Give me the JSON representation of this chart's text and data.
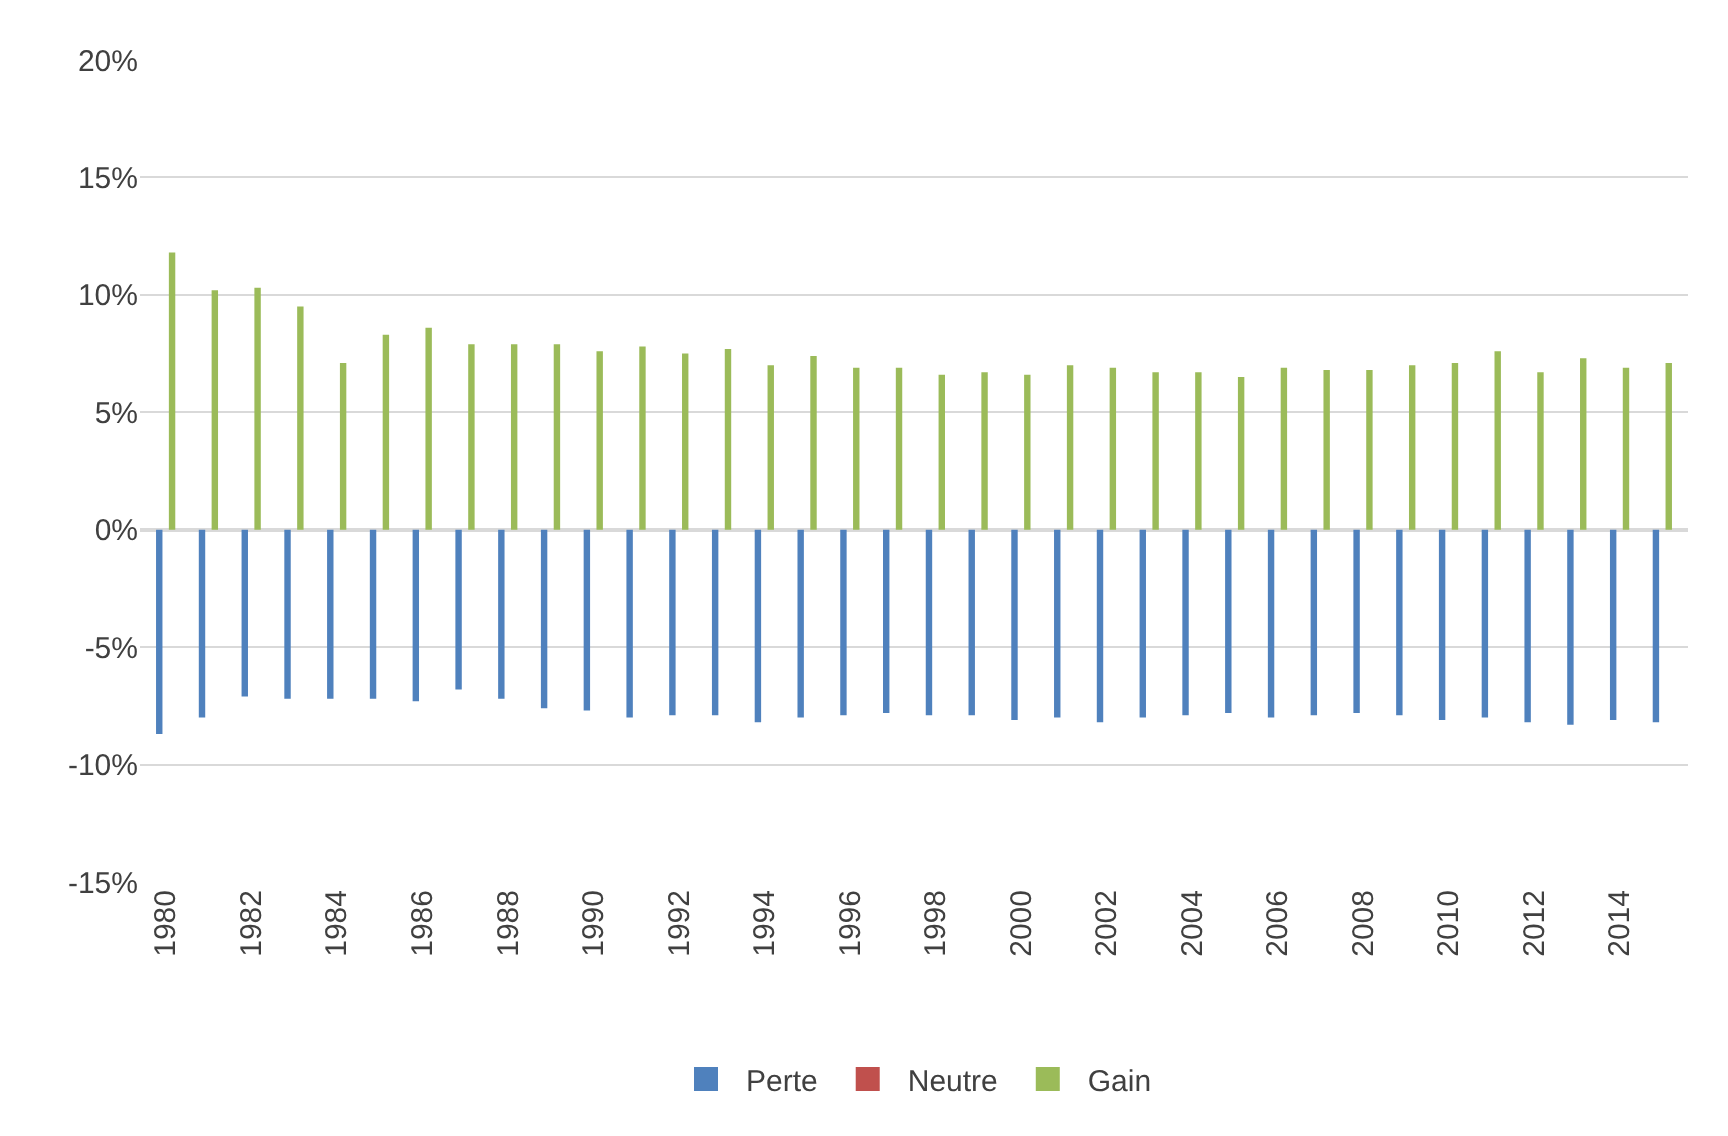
{
  "chart_data": {
    "type": "bar",
    "categories": [
      "1980",
      null,
      "1982",
      null,
      "1984",
      null,
      "1986",
      null,
      "1988",
      null,
      "1990",
      null,
      "1992",
      null,
      "1994",
      null,
      "1996",
      null,
      "1998",
      null,
      "2000",
      null,
      "2002",
      null,
      "2004",
      null,
      "2006",
      null,
      "2008",
      null,
      "2010",
      null,
      "2012",
      null,
      "2014",
      null
    ],
    "series": [
      {
        "name": "Perte",
        "color": "#4f81bd",
        "values": [
          -8.7,
          -8.0,
          -7.1,
          -7.2,
          -7.2,
          -7.2,
          -7.3,
          -6.8,
          -7.2,
          -7.6,
          -7.7,
          -8.0,
          -7.9,
          -7.9,
          -8.2,
          -8.0,
          -7.9,
          -7.8,
          -7.9,
          -7.9,
          -8.1,
          -8.0,
          -8.2,
          -8.0,
          -7.9,
          -7.8,
          -8.0,
          -7.9,
          -7.8,
          -7.9,
          -8.1,
          -8.0,
          -8.2,
          -8.3,
          -8.1,
          -8.2
        ]
      },
      {
        "name": "Neutre",
        "color": "#c0504d",
        "values": [
          0,
          0,
          0,
          0,
          0,
          0,
          0,
          0,
          0,
          0,
          0,
          0,
          0,
          0,
          0,
          0,
          0,
          0,
          0,
          0,
          0,
          0,
          0,
          0,
          0,
          0,
          0,
          0,
          0,
          0,
          0,
          0,
          0,
          0,
          0,
          0
        ]
      },
      {
        "name": "Gain",
        "color": "#9bbb59",
        "values": [
          11.8,
          10.2,
          10.3,
          9.5,
          7.1,
          8.3,
          8.6,
          7.9,
          7.9,
          7.9,
          7.6,
          7.8,
          7.5,
          7.7,
          7.0,
          7.4,
          6.9,
          6.9,
          6.6,
          6.7,
          6.6,
          7.0,
          6.9,
          6.7,
          6.7,
          6.5,
          6.9,
          6.8,
          6.8,
          7.0,
          7.1,
          7.6,
          6.7,
          7.3,
          6.9,
          7.1
        ]
      }
    ],
    "ylim": [
      -15,
      20
    ],
    "yticks": [
      {
        "value": -15,
        "label": "-15%"
      },
      {
        "value": -10,
        "label": "-10%"
      },
      {
        "value": -5,
        "label": "-5%"
      },
      {
        "value": 0,
        "label": "0%"
      },
      {
        "value": 5,
        "label": "5%"
      },
      {
        "value": 10,
        "label": "10%"
      },
      {
        "value": 15,
        "label": "15%"
      },
      {
        "value": 20,
        "label": "20%"
      }
    ],
    "grid": "y",
    "legend": "bottom"
  }
}
